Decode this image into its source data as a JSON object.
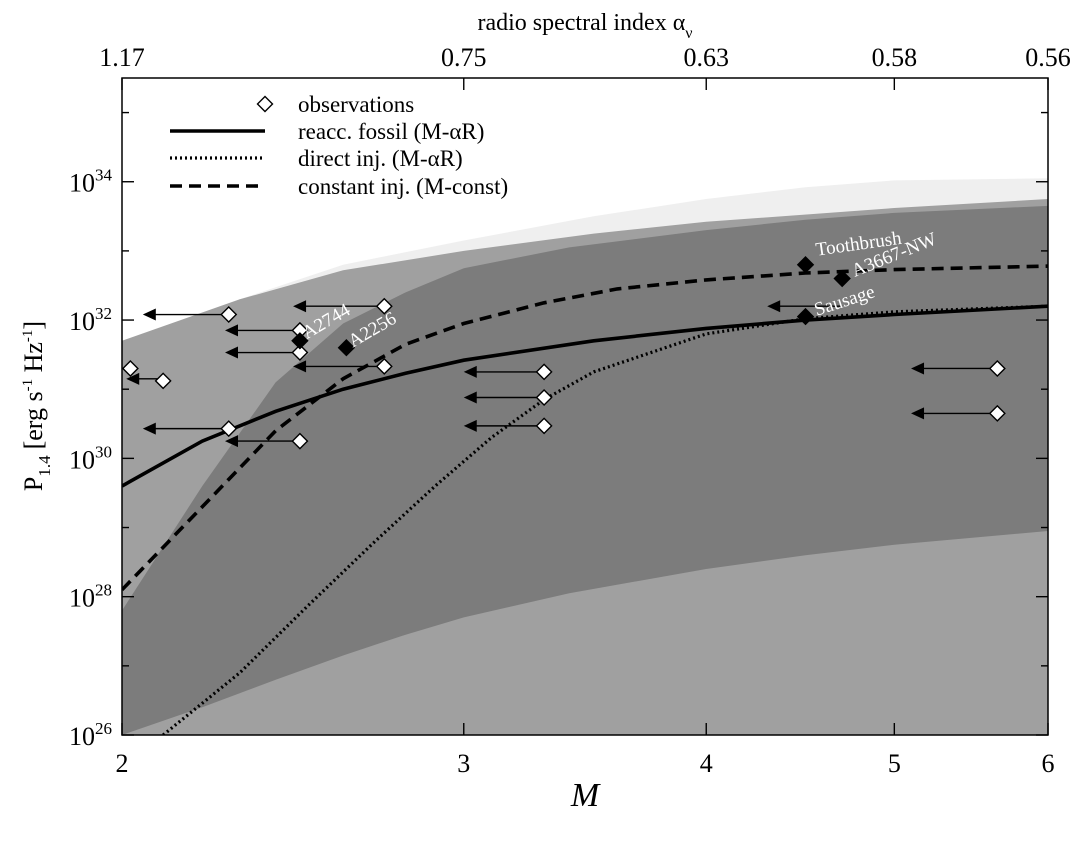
{
  "chart_data": {
    "type": "line",
    "x_axis": {
      "label": "M",
      "scale": "log",
      "range": [
        2,
        6
      ],
      "ticks": [
        2,
        3,
        4,
        5,
        6
      ],
      "tick_labels": [
        "2",
        "3",
        "4",
        "5",
        "6"
      ]
    },
    "top_axis": {
      "label_main": "radio spectral index α",
      "label_sub": "ν",
      "ticks_mach": [
        2,
        3,
        4,
        5,
        6
      ],
      "tick_labels": [
        "1.17",
        "0.75",
        "0.63",
        "0.58",
        "0.56"
      ]
    },
    "y_axis": {
      "label_main": "P",
      "label_sub": "1.4",
      "label_units": [
        "[erg s",
        "-1",
        " Hz",
        "-1",
        "]"
      ],
      "scale": "log",
      "range_log10": [
        26,
        35.5
      ],
      "major_ticks_log10": [
        26,
        28,
        30,
        32,
        34
      ],
      "tick_base": "10",
      "tick_exponents": [
        "26",
        "28",
        "30",
        "32",
        "34"
      ]
    },
    "bands": [
      {
        "name": "light band",
        "color": "#efefef",
        "x": [
          2.0,
          2.3,
          2.6,
          3.0,
          3.5,
          4.0,
          4.5,
          5.0,
          6.0
        ],
        "upper": [
          31.4,
          32.3,
          32.8,
          33.15,
          33.5,
          33.75,
          33.92,
          34.02,
          34.05
        ],
        "lower": [
          26.0,
          26.0,
          26.0,
          26.0,
          26.0,
          27.8,
          28.2,
          28.4,
          28.5
        ]
      },
      {
        "name": "medium band",
        "color": "#a0a0a0",
        "x": [
          2.0,
          2.3,
          2.6,
          3.0,
          3.5,
          4.0,
          5.0,
          6.0
        ],
        "upper": [
          31.7,
          32.3,
          32.72,
          33.0,
          33.25,
          33.42,
          33.62,
          33.75
        ],
        "lower": [
          26.0,
          26.0,
          26.0,
          26.0,
          26.0,
          26.0,
          26.0,
          26.0
        ]
      },
      {
        "name": "dark band",
        "color": "#7c7c7c",
        "x": [
          2.0,
          2.2,
          2.4,
          2.6,
          2.8,
          3.0,
          3.4,
          4.0,
          4.5,
          5.0,
          6.0
        ],
        "upper": [
          27.8,
          29.6,
          31.1,
          31.95,
          32.4,
          32.75,
          33.05,
          33.3,
          33.45,
          33.55,
          33.65
        ],
        "lower": [
          26.0,
          26.4,
          26.8,
          27.15,
          27.45,
          27.7,
          28.05,
          28.4,
          28.6,
          28.75,
          28.95
        ]
      }
    ],
    "series": [
      {
        "name": "reacc. fossil (M-αR)",
        "style": "solid",
        "x": [
          2.0,
          2.2,
          2.4,
          2.6,
          2.8,
          3.0,
          3.5,
          4.0,
          4.5,
          5.0,
          6.0
        ],
        "y": [
          29.6,
          30.25,
          30.68,
          31.0,
          31.23,
          31.42,
          31.7,
          31.88,
          32.0,
          32.08,
          32.2
        ]
      },
      {
        "name": "direct inj. (M-αR)",
        "style": "dotted",
        "x": [
          2.1,
          2.3,
          2.5,
          2.7,
          2.9,
          3.1,
          3.3,
          3.5,
          4.0,
          4.5,
          5.0,
          6.0
        ],
        "y": [
          26.0,
          26.9,
          27.9,
          28.8,
          29.6,
          30.3,
          30.85,
          31.25,
          31.8,
          32.02,
          32.12,
          32.2
        ]
      },
      {
        "name": "constant inj. (M-const)",
        "style": "dashed",
        "x": [
          2.0,
          2.2,
          2.4,
          2.6,
          2.8,
          3.0,
          3.3,
          3.6,
          4.0,
          4.5,
          5.0,
          6.0
        ],
        "y": [
          28.1,
          29.3,
          30.4,
          31.15,
          31.65,
          31.95,
          32.25,
          32.45,
          32.58,
          32.68,
          32.73,
          32.78
        ]
      }
    ],
    "observations_open": [
      {
        "M": 2.02,
        "logP": 31.3
      },
      {
        "M": 2.1,
        "logP": 31.12
      },
      {
        "M": 2.27,
        "logP": 32.08
      },
      {
        "M": 2.27,
        "logP": 30.43
      },
      {
        "M": 2.47,
        "logP": 31.85
      },
      {
        "M": 2.47,
        "logP": 31.53
      },
      {
        "M": 2.47,
        "logP": 30.25
      },
      {
        "M": 2.73,
        "logP": 32.2
      },
      {
        "M": 2.73,
        "logP": 31.33
      },
      {
        "M": 3.3,
        "logP": 31.25
      },
      {
        "M": 3.3,
        "logP": 30.88
      },
      {
        "M": 3.3,
        "logP": 30.47
      },
      {
        "M": 5.65,
        "logP": 31.3
      },
      {
        "M": 5.65,
        "logP": 30.65
      }
    ],
    "upper_limit_arrows": [
      {
        "from": 2.27,
        "to": 2.05,
        "logP": 32.08
      },
      {
        "from": 2.47,
        "to": 2.26,
        "logP": 31.85
      },
      {
        "from": 2.47,
        "to": 2.26,
        "logP": 31.53
      },
      {
        "from": 2.73,
        "to": 2.45,
        "logP": 32.2
      },
      {
        "from": 2.73,
        "to": 2.45,
        "logP": 31.33
      },
      {
        "from": 2.27,
        "to": 2.05,
        "logP": 30.43
      },
      {
        "from": 2.47,
        "to": 2.26,
        "logP": 30.25
      },
      {
        "from": 2.1,
        "to": 2.01,
        "logP": 31.15
      },
      {
        "from": 3.3,
        "to": 3.0,
        "logP": 31.25
      },
      {
        "from": 3.3,
        "to": 3.0,
        "logP": 30.88
      },
      {
        "from": 3.3,
        "to": 3.0,
        "logP": 30.47
      },
      {
        "from": 4.7,
        "to": 4.3,
        "logP": 32.2
      },
      {
        "from": 5.65,
        "to": 5.1,
        "logP": 31.3
      },
      {
        "from": 5.65,
        "to": 5.1,
        "logP": 30.65
      }
    ],
    "observations_filled": [
      {
        "name": "A2744",
        "M": 2.47,
        "logP": 31.7
      },
      {
        "name": "A2256",
        "M": 2.61,
        "logP": 31.6
      },
      {
        "name": "Toothbrush",
        "M": 4.5,
        "logP": 32.8
      },
      {
        "name": "A3667-NW",
        "M": 4.7,
        "logP": 32.6
      },
      {
        "name": "Sausage",
        "M": 4.5,
        "logP": 32.05
      }
    ],
    "annotations": [
      {
        "text": "A2744",
        "M": 2.49,
        "logP": 31.72,
        "rotate": -30,
        "color": "#ffffff"
      },
      {
        "text": "A2256",
        "M": 2.63,
        "logP": 31.6,
        "rotate": -30,
        "color": "#ffffff"
      },
      {
        "text": "Toothbrush",
        "M": 4.56,
        "logP": 32.93,
        "rotate": -8,
        "color": "#ffffff"
      },
      {
        "text": "A3667-NW",
        "M": 4.77,
        "logP": 32.62,
        "rotate": -22,
        "color": "#ffffff"
      },
      {
        "text": "Sausage",
        "M": 4.56,
        "logP": 32.06,
        "rotate": -18,
        "color": "#ffffff"
      }
    ],
    "legend": {
      "placement": "top-left",
      "entries": [
        {
          "label": "observations",
          "kind": "open-diamond"
        },
        {
          "label": "reacc. fossil (M-αR)",
          "kind": "solid"
        },
        {
          "label": "direct inj. (M-αR)",
          "kind": "dotted"
        },
        {
          "label": "constant inj. (M-const)",
          "kind": "dashed"
        }
      ]
    }
  }
}
